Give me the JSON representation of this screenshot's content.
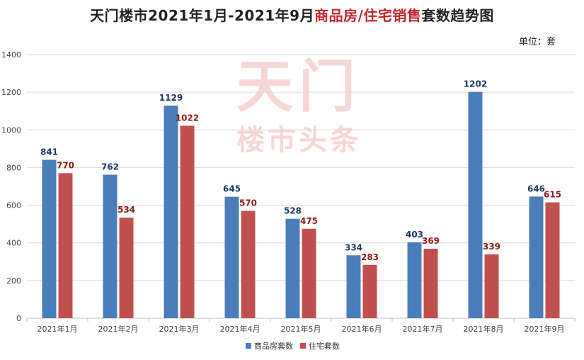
{
  "title": {
    "part1": "天门楼市2021年1月-2021年9月",
    "part2": "商品房/住宅销售",
    "part3": "套数趋势图"
  },
  "unit_label": "单位：套",
  "watermark": {
    "line1": "天门",
    "line2": "楼市头条"
  },
  "colors": {
    "series1": "#4a7ebb",
    "series2": "#c0504d",
    "label1": "#1f3864",
    "label2": "#8b1a1a"
  },
  "chart_data": {
    "type": "bar",
    "categories": [
      "2021年1月",
      "2021年2月",
      "2021年3月",
      "2021年4月",
      "2021年5月",
      "2021年6月",
      "2021年7月",
      "2021年8月",
      "2021年9月"
    ],
    "series": [
      {
        "name": "商品房套数",
        "values": [
          841,
          762,
          1129,
          645,
          528,
          334,
          403,
          1202,
          646
        ]
      },
      {
        "name": "住宅套数",
        "values": [
          770,
          534,
          1022,
          570,
          475,
          283,
          369,
          339,
          615
        ]
      }
    ],
    "ylim": [
      0,
      1400
    ],
    "yticks": [
      0,
      200,
      400,
      600,
      800,
      1000,
      1200,
      1400
    ],
    "grid": true,
    "legend": "bottom"
  }
}
